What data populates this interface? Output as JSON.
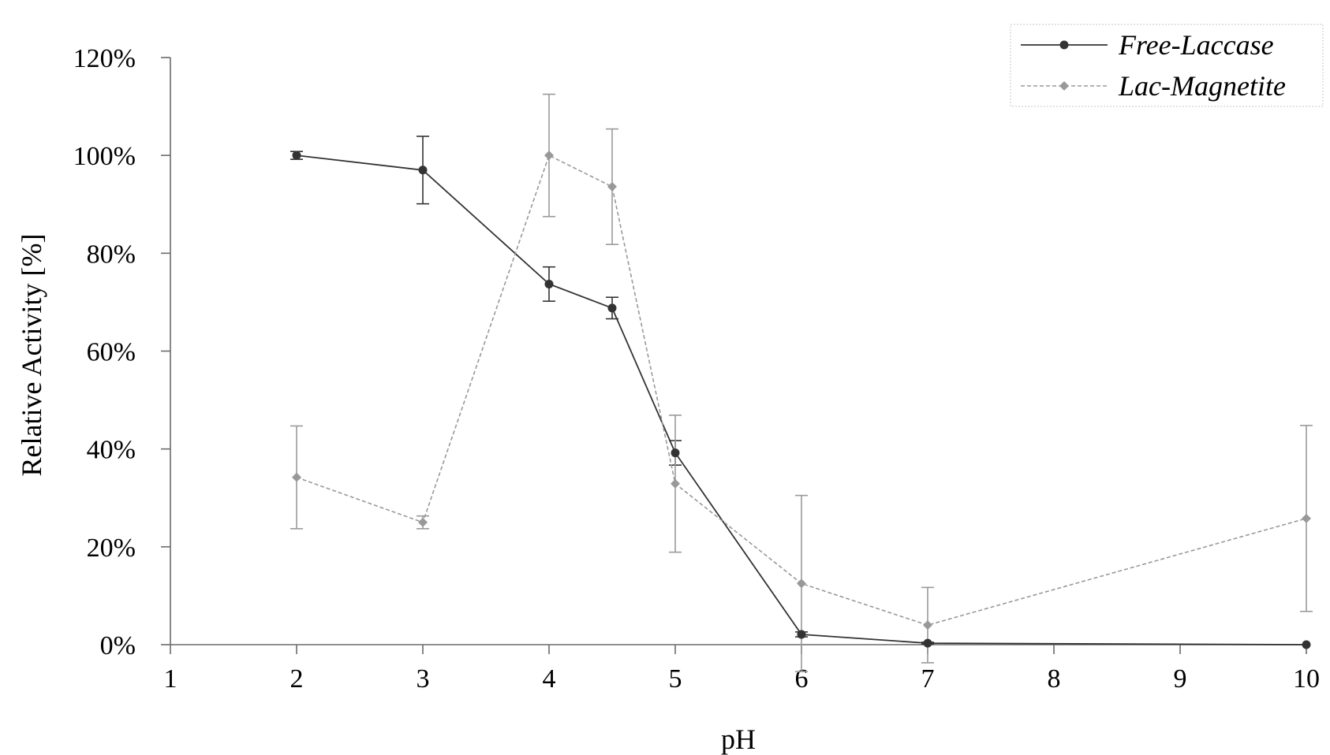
{
  "chart_data": {
    "type": "line",
    "xlabel": "pH",
    "ylabel": "Relative Activity [%]",
    "xlim": [
      1,
      10
    ],
    "ylim": [
      0,
      120
    ],
    "x_ticks": [
      "1",
      "2",
      "3",
      "4",
      "5",
      "6",
      "7",
      "8",
      "9",
      "10"
    ],
    "y_ticks": [
      "0%",
      "20%",
      "40%",
      "60%",
      "80%",
      "100%",
      "120%"
    ],
    "grid": false,
    "legend_position": "top-right",
    "series": [
      {
        "name": "Free-Laccase",
        "color": "#333333",
        "line_style": "solid",
        "marker": "circle",
        "x": [
          2,
          3,
          4,
          4.5,
          5,
          6,
          7,
          10
        ],
        "y": [
          100,
          97,
          73.7,
          68.8,
          39.2,
          2.1,
          0.3,
          0
        ],
        "error": [
          0.8,
          6.9,
          3.5,
          2.2,
          2.5,
          0.5,
          0.2,
          0
        ]
      },
      {
        "name": "Lac-Magnetite",
        "color": "#999999",
        "line_style": "dashed",
        "marker": "diamond",
        "x": [
          2,
          3,
          4,
          4.5,
          5,
          6,
          7,
          10
        ],
        "y": [
          34.2,
          25,
          100,
          93.6,
          32.9,
          12.5,
          4,
          25.8
        ],
        "error": [
          10.5,
          1.3,
          12.5,
          11.8,
          14,
          18,
          7.7,
          19
        ]
      }
    ]
  }
}
